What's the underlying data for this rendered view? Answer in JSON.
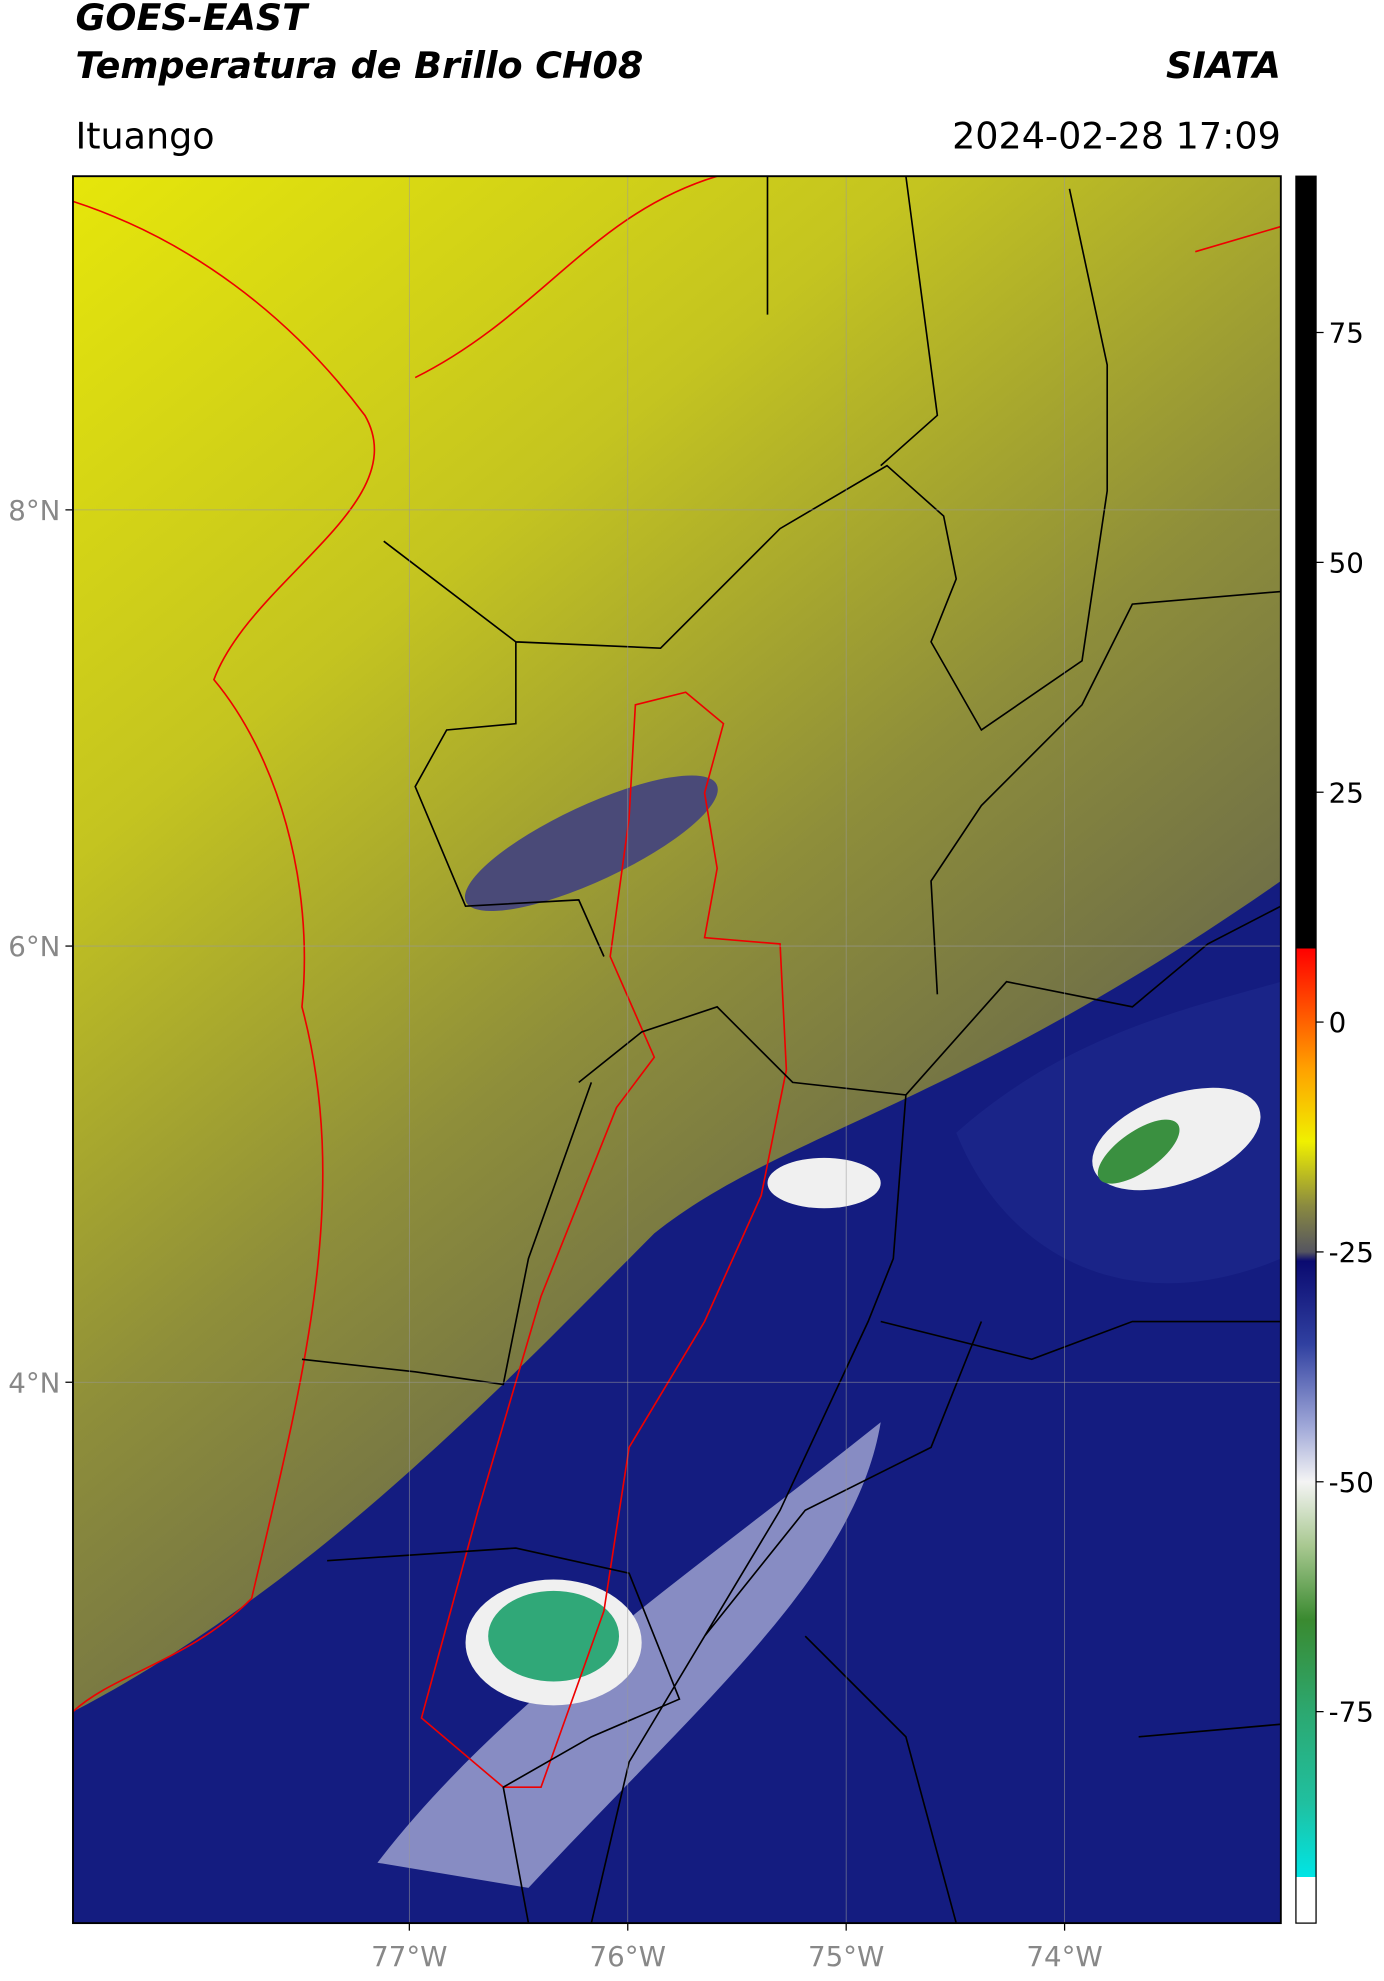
{
  "header": {
    "title_line1": "GOES-EAST",
    "title_line2": "Temperatura de Brillo CH08",
    "org": "SIATA",
    "region": "Ituango",
    "timestamp": "2024-02-28 17:09"
  },
  "map": {
    "xlim": [
      -78.54,
      -73.01
    ],
    "ylim": [
      1.52,
      9.53
    ],
    "xticks": [
      {
        "value": -77,
        "label": "77°W"
      },
      {
        "value": -76,
        "label": "76°W"
      },
      {
        "value": -75,
        "label": "75°W"
      },
      {
        "value": -74,
        "label": "74°W"
      }
    ],
    "yticks": [
      {
        "value": 8,
        "label": "8°N"
      },
      {
        "value": 6,
        "label": "6°N"
      },
      {
        "value": 4,
        "label": "4°N"
      }
    ]
  },
  "colorbar": {
    "lim": [
      -98,
      92
    ],
    "ticks": [
      75,
      50,
      25,
      0,
      -25,
      -50,
      -75
    ],
    "stops": [
      {
        "value": -98,
        "color": "#ffffff"
      },
      {
        "value": -93,
        "color": "#ffffff"
      },
      {
        "value": -93,
        "color": "#00e5e5"
      },
      {
        "value": -85,
        "color": "#20c0a0"
      },
      {
        "value": -75,
        "color": "#2ca870"
      },
      {
        "value": -65,
        "color": "#3a8a30"
      },
      {
        "value": -57,
        "color": "#a8c890"
      },
      {
        "value": -50,
        "color": "#f4f4f4"
      },
      {
        "value": -44,
        "color": "#a0a8d8"
      },
      {
        "value": -35,
        "color": "#3040a0"
      },
      {
        "value": -26,
        "color": "#0a0a70"
      },
      {
        "value": -25,
        "color": "#555560"
      },
      {
        "value": -20,
        "color": "#8a8a40"
      },
      {
        "value": -13,
        "color": "#f0f000"
      },
      {
        "value": -5,
        "color": "#ffa000"
      },
      {
        "value": 8,
        "color": "#ff0000"
      },
      {
        "value": 8,
        "color": "#000000"
      },
      {
        "value": 92,
        "color": "#000000"
      }
    ]
  }
}
